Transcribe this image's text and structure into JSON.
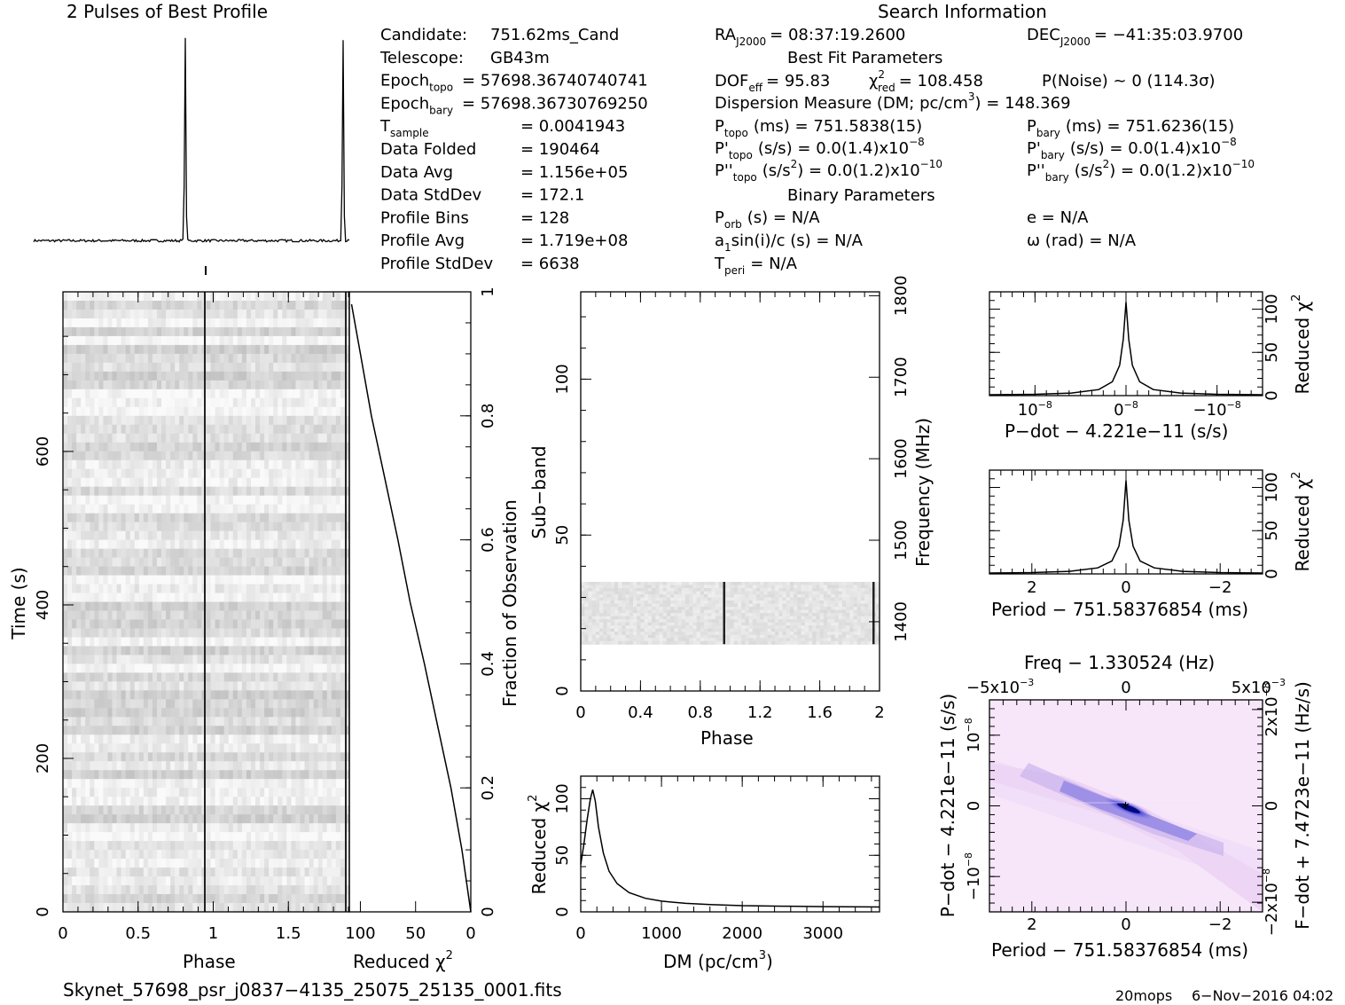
{
  "headers": {
    "profile_title": "2 Pulses of Best Profile",
    "search_title": "Search Information",
    "best_fit_title": "Best Fit Parameters",
    "binary_title": "Binary Parameters"
  },
  "info_left": [
    {
      "label": "Candidate:",
      "value": "751.62ms_Cand"
    },
    {
      "label": "Telescope:",
      "value": "GB43m"
    },
    {
      "label": "Epoch",
      "sub": "topo",
      "value": "= 57698.36740740741"
    },
    {
      "label": "Epoch",
      "sub": "bary",
      "value": "= 57698.36730769250"
    },
    {
      "label": "T",
      "sub": "sample",
      "value": "=   0.0041943"
    },
    {
      "label": "Data Folded",
      "value": "=   190464"
    },
    {
      "label": "Data Avg",
      "value": "=   1.156e+05"
    },
    {
      "label": "Data StdDev",
      "value": "=   172.1"
    },
    {
      "label": "Profile Bins",
      "value": "=   128"
    },
    {
      "label": "Profile Avg",
      "value": "=   1.719e+08"
    },
    {
      "label": "Profile StdDev",
      "value": "=   6638"
    }
  ],
  "info_mid": {
    "ra": "RA",
    "ra_sub": "J2000",
    "ra_value": "= 08:37:19.2600",
    "dec": "DEC",
    "dec_sub": "J2000",
    "dec_value": "= −41:35:03.9700",
    "dof": "DOF",
    "dof_sub": "eff",
    "dof_value": "= 95.83",
    "chi": "χ",
    "chi_sup": "2",
    "chi_sub": "red",
    "chi_value": "= 108.458",
    "pnoise": "P(Noise) ~ 0   (114.3σ)",
    "dm_line": "Dispersion Measure (DM; pc/cm",
    "dm_sup": "3",
    "dm_value": ") = 148.369",
    "ptopo": "P",
    "ptopo_sub": "topo",
    "ptopo_value": "(ms) =  751.5838(15)",
    "pbary": "P",
    "pbary_sub": "bary",
    "pbary_value": "(ms) =  751.6236(15)",
    "pdtopo": "P'",
    "pdtopo_sub": "topo",
    "pdtopo_value": "(s/s) = 0.0(1.4)x10",
    "pdtopo_exp": "−8",
    "pdbary": "P'",
    "pdbary_sub": "bary",
    "pdbary_value": "(s/s) = 0.0(1.4)x10",
    "pdbary_exp": "−8",
    "pddtopo": "P''",
    "pddtopo_sub": "topo",
    "pddtopo_value": "(s/s",
    "pddtopo_sup": "2",
    "pddtopo_value2": ") = 0.0(1.2)x10",
    "pddtopo_exp": "−10",
    "pddbary": "P''",
    "pddbary_sub": "bary",
    "pddbary_value": "(s/s",
    "pddbary_sup": "2",
    "pddbary_value2": ") = 0.0(1.2)x10",
    "pddbary_exp": "−10",
    "porb": "P",
    "porb_sub": "orb",
    "porb_value": "(s) = N/A",
    "ecc": "e = N/A",
    "a1": "a",
    "a1_sub": "1",
    "a1_value": "sin(i)/c (s) = N/A",
    "omega": "ω (rad) = N/A",
    "tperi": "T",
    "tperi_sub": "peri",
    "tperi_value": "= N/A"
  },
  "footer": {
    "filename": "Skynet_57698_psr_j0837−4135_25075_25135_0001.fits",
    "user": "20mops",
    "date": "6−Nov−2016 04:02"
  },
  "chart_data": [
    {
      "type": "line",
      "name": "profile",
      "title": "2 Pulses of Best Profile",
      "x_range": [
        0,
        2
      ],
      "peaks": [
        0.96,
        1.96
      ],
      "peak_height": 1.0,
      "baseline_level": 0.02
    },
    {
      "type": "heatmap",
      "name": "time-phase",
      "xlabel": "Phase",
      "ylabel": "Time (s)",
      "xlim": [
        0,
        2
      ],
      "ylim": [
        0,
        800
      ],
      "xticks": [
        "0",
        "0.5",
        "1",
        "1.5"
      ],
      "yticks": [
        "0",
        "200",
        "400",
        "600"
      ],
      "pulse_phase": [
        0.96,
        1.96
      ]
    },
    {
      "type": "line",
      "name": "reduced-chi2-vs-time",
      "xlabel": "Reduced χ",
      "xlabel_sup": "2",
      "ylabel": "Fraction of Observation",
      "xlim": [
        110,
        0
      ],
      "ylim": [
        0,
        1
      ],
      "xticks": [
        "100",
        "50",
        "0"
      ],
      "yticks": [
        "0",
        "0.2",
        "0.4",
        "0.6",
        "0.8",
        "1"
      ],
      "x": [
        0,
        8,
        18,
        30,
        42,
        55,
        66,
        78,
        90,
        100,
        108
      ],
      "y": [
        0,
        0.1,
        0.2,
        0.3,
        0.4,
        0.5,
        0.6,
        0.7,
        0.8,
        0.9,
        0.98
      ]
    },
    {
      "type": "heatmap",
      "name": "subband-phase",
      "xlabel": "Phase",
      "ylabel": "Sub−band",
      "ylabel2": "Frequency (MHz)",
      "xlim": [
        0,
        2
      ],
      "ylim": [
        0,
        128
      ],
      "xticks": [
        "0",
        "0.4",
        "0.8",
        "1.2",
        "1.6",
        "2"
      ],
      "yticks": [
        "0",
        "50",
        "100"
      ],
      "yticks2": [
        "1400",
        "1500",
        "1600",
        "1700",
        "1800"
      ],
      "band_range": [
        15,
        35
      ],
      "pulse_phase": [
        0.96,
        1.96
      ]
    },
    {
      "type": "line",
      "name": "dm-curve",
      "xlabel": "DM (pc/cm",
      "xlabel_sup": "3",
      "xlabel_end": ")",
      "ylabel": "Reduced χ",
      "ylabel_sup": "2",
      "xlim": [
        0,
        3700
      ],
      "ylim": [
        0,
        120
      ],
      "xticks": [
        "0",
        "1000",
        "2000",
        "3000"
      ],
      "yticks": [
        "0",
        "50",
        "100"
      ],
      "x": [
        0,
        40,
        80,
        120,
        148,
        180,
        220,
        280,
        350,
        450,
        600,
        800,
        1000,
        1300,
        1600,
        2000,
        2500,
        3000,
        3500,
        3700
      ],
      "y": [
        42,
        60,
        82,
        100,
        108,
        98,
        75,
        52,
        36,
        25,
        17,
        12,
        9.5,
        7.5,
        6.5,
        5.5,
        5,
        4.6,
        4.4,
        4.3
      ]
    },
    {
      "type": "line",
      "name": "pdot-curve",
      "xlabel": "P−dot − 4.221e−11 (s/s)",
      "ylabel": "Reduced χ",
      "ylabel_sup": "2",
      "xlim": [
        1.5,
        -1.5
      ],
      "ylim": [
        0,
        120
      ],
      "xticks": [
        "10",
        "0",
        "−10"
      ],
      "xtick_exp": "−8",
      "yticks": [
        "0",
        "50",
        "100"
      ],
      "x": [
        1.5,
        1.0,
        0.6,
        0.3,
        0.15,
        0.07,
        0.03,
        0,
        -0.03,
        -0.07,
        -0.15,
        -0.3,
        -0.6,
        -1.0,
        -1.5
      ],
      "y": [
        1,
        1.5,
        3,
        7,
        16,
        35,
        65,
        108,
        65,
        35,
        16,
        7,
        3,
        1.5,
        1
      ]
    },
    {
      "type": "line",
      "name": "period-curve",
      "xlabel": "Period − 751.58376854 (ms)",
      "ylabel": "Reduced χ",
      "ylabel_sup": "2",
      "xlim": [
        2.9,
        -2.9
      ],
      "ylim": [
        0,
        120
      ],
      "xticks": [
        "2",
        "0",
        "−2"
      ],
      "yticks": [
        "0",
        "50",
        "100"
      ],
      "x": [
        2.9,
        2.0,
        1.2,
        0.6,
        0.3,
        0.15,
        0.06,
        0,
        -0.06,
        -0.15,
        -0.3,
        -0.6,
        -1.2,
        -2.0,
        -2.9
      ],
      "y": [
        1,
        1.5,
        3,
        7,
        15,
        32,
        62,
        108,
        62,
        32,
        15,
        7,
        3,
        1.5,
        1
      ]
    },
    {
      "type": "heatmap",
      "name": "period-pdot-plane",
      "title": "Freq − 1.330524 (Hz)",
      "xlabel": "Period − 751.58376854 (ms)",
      "ylabel": "P−dot − 4.221e−11 (s/s)",
      "ylabel2": "F−dot + 7.4723e−11 (Hz/s)",
      "xlim": [
        2.9,
        -2.9
      ],
      "ylim": [
        -1.5,
        1.5
      ],
      "xticks": [
        "2",
        "0",
        "−2"
      ],
      "yticks": [
        "10",
        "0",
        "−10"
      ],
      "ytick_exp": "−8",
      "top_ticks": [
        "−5x10",
        "0",
        "5x10"
      ],
      "top_tick_exp": "−3",
      "right_ticks": [
        "2x10",
        "0",
        "−2x10"
      ],
      "right_tick_exp": "−8",
      "best": [
        0,
        0
      ]
    }
  ]
}
